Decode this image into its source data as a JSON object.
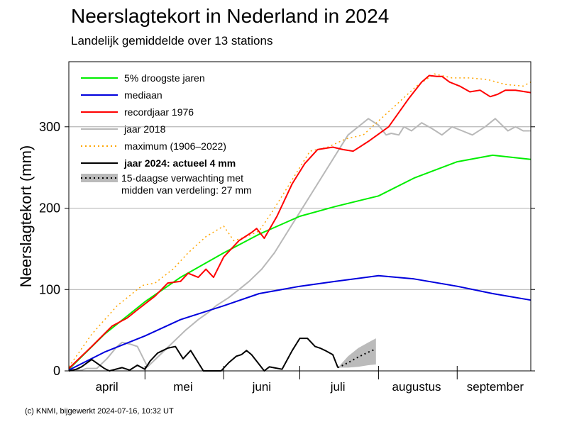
{
  "title": "Neerslagtekort in Nederland in 2024",
  "subtitle": "Landelijk gemiddelde over 13 stations",
  "footer": "(c) KNMI, bijgewerkt 2024-07-16, 10:32 UT",
  "colors": {
    "dry5": "#00ee00",
    "median": "#0000dd",
    "record1976": "#ff0000",
    "year2018": "#b8b8b8",
    "maximum": "#ffa500",
    "year2024": "#000000",
    "forecast_band": "#bbbbbb",
    "grid": "#999999"
  },
  "chart_data": {
    "type": "line",
    "title": "Neerslagtekort in Nederland in 2024",
    "subtitle": "Landelijk gemiddelde over 13 stations",
    "xlabel": "",
    "ylabel": "Neerslagtekort (mm)",
    "xlim": [
      "2024-04-01",
      "2024-09-30"
    ],
    "ylim": [
      0,
      380
    ],
    "yticks": [
      0,
      100,
      200,
      300
    ],
    "xticks": [
      {
        "label": "april",
        "date": "2024-04-16"
      },
      {
        "label": "mei",
        "date": "2024-05-16"
      },
      {
        "label": "juni",
        "date": "2024-06-16"
      },
      {
        "label": "juli",
        "date": "2024-07-16"
      },
      {
        "label": "augustus",
        "date": "2024-08-16"
      },
      {
        "label": "september",
        "date": "2024-09-16"
      }
    ],
    "month_boundaries": [
      "2024-05-01",
      "2024-06-01",
      "2024-07-01",
      "2024-08-01",
      "2024-09-01"
    ],
    "grid": true,
    "legend_position": "top-left",
    "series": [
      {
        "key": "dry5",
        "name": "5% droogste jaren",
        "style": "solid",
        "x": [
          "2024-04-01",
          "2024-04-15",
          "2024-05-01",
          "2024-05-15",
          "2024-06-01",
          "2024-06-15",
          "2024-07-01",
          "2024-07-15",
          "2024-08-01",
          "2024-08-15",
          "2024-09-01",
          "2024-09-15",
          "2024-09-30"
        ],
        "y": [
          2,
          45,
          85,
          115,
          145,
          168,
          190,
          202,
          215,
          237,
          257,
          265,
          260
        ]
      },
      {
        "key": "median",
        "name": "mediaan",
        "style": "solid",
        "x": [
          "2024-04-01",
          "2024-04-15",
          "2024-05-01",
          "2024-05-15",
          "2024-06-01",
          "2024-06-15",
          "2024-07-01",
          "2024-07-15",
          "2024-08-01",
          "2024-08-15",
          "2024-09-01",
          "2024-09-15",
          "2024-09-30"
        ],
        "y": [
          1,
          23,
          43,
          63,
          80,
          95,
          104,
          110,
          117,
          113,
          104,
          95,
          87
        ]
      },
      {
        "key": "record1976",
        "name": "recordjaar 1976",
        "style": "solid",
        "x": [
          "2024-04-01",
          "2024-04-10",
          "2024-04-18",
          "2024-04-24",
          "2024-04-28",
          "2024-05-05",
          "2024-05-10",
          "2024-05-15",
          "2024-05-18",
          "2024-05-22",
          "2024-05-25",
          "2024-05-28",
          "2024-06-01",
          "2024-06-07",
          "2024-06-12",
          "2024-06-14",
          "2024-06-17",
          "2024-06-22",
          "2024-06-28",
          "2024-07-03",
          "2024-07-08",
          "2024-07-14",
          "2024-07-18",
          "2024-07-22",
          "2024-07-28",
          "2024-08-05",
          "2024-08-13",
          "2024-08-18",
          "2024-08-21",
          "2024-08-24",
          "2024-08-26",
          "2024-08-29",
          "2024-09-02",
          "2024-09-06",
          "2024-09-10",
          "2024-09-14",
          "2024-09-17",
          "2024-09-20",
          "2024-09-24",
          "2024-09-30"
        ],
        "y": [
          3,
          30,
          55,
          65,
          75,
          92,
          108,
          110,
          120,
          115,
          125,
          115,
          140,
          160,
          170,
          175,
          163,
          190,
          230,
          255,
          272,
          275,
          272,
          270,
          282,
          300,
          335,
          355,
          363,
          362,
          362,
          355,
          350,
          343,
          345,
          337,
          340,
          345,
          345,
          342
        ]
      },
      {
        "key": "year2018",
        "name": "jaar 2018",
        "style": "solid",
        "x": [
          "2024-04-01",
          "2024-04-06",
          "2024-04-08",
          "2024-04-12",
          "2024-04-16",
          "2024-04-20",
          "2024-04-22",
          "2024-04-25",
          "2024-04-28",
          "2024-05-02",
          "2024-05-07",
          "2024-05-12",
          "2024-05-17",
          "2024-05-22",
          "2024-05-26",
          "2024-05-29",
          "2024-06-03",
          "2024-06-07",
          "2024-06-11",
          "2024-06-16",
          "2024-06-21",
          "2024-06-26",
          "2024-07-01",
          "2024-07-06",
          "2024-07-11",
          "2024-07-16",
          "2024-07-20",
          "2024-07-24",
          "2024-07-28",
          "2024-08-01",
          "2024-08-04",
          "2024-08-06",
          "2024-08-09",
          "2024-08-11",
          "2024-08-14",
          "2024-08-18",
          "2024-08-22",
          "2024-08-26",
          "2024-08-30",
          "2024-09-03",
          "2024-09-07",
          "2024-09-12",
          "2024-09-16",
          "2024-09-21",
          "2024-09-24",
          "2024-09-27",
          "2024-09-30"
        ],
        "y": [
          0,
          1,
          3,
          3,
          15,
          30,
          35,
          33,
          30,
          5,
          20,
          35,
          50,
          63,
          72,
          80,
          90,
          100,
          110,
          125,
          145,
          170,
          195,
          220,
          245,
          270,
          290,
          300,
          310,
          302,
          290,
          292,
          290,
          300,
          295,
          305,
          298,
          290,
          300,
          295,
          290,
          300,
          310,
          295,
          300,
          295,
          295
        ]
      },
      {
        "key": "maximum",
        "name": "maximum (1906–2022)",
        "style": "dotted",
        "x": [
          "2024-04-01",
          "2024-04-10",
          "2024-04-20",
          "2024-04-30",
          "2024-05-05",
          "2024-05-12",
          "2024-05-18",
          "2024-05-25",
          "2024-06-01",
          "2024-06-05",
          "2024-06-10",
          "2024-06-15",
          "2024-06-20",
          "2024-06-28",
          "2024-07-05",
          "2024-07-12",
          "2024-07-19",
          "2024-07-26",
          "2024-08-02",
          "2024-08-09",
          "2024-08-16",
          "2024-08-23",
          "2024-08-30",
          "2024-09-06",
          "2024-09-13",
          "2024-09-20",
          "2024-09-27",
          "2024-09-30"
        ],
        "y": [
          5,
          45,
          80,
          105,
          108,
          125,
          145,
          165,
          178,
          160,
          165,
          172,
          195,
          235,
          270,
          275,
          285,
          290,
          310,
          330,
          350,
          365,
          360,
          360,
          358,
          352,
          350,
          355
        ]
      },
      {
        "key": "year2024",
        "name": "jaar 2024: actueel 4 mm",
        "style": "solid",
        "bold_label": true,
        "x": [
          "2024-04-01",
          "2024-04-04",
          "2024-04-06",
          "2024-04-10",
          "2024-04-15",
          "2024-04-17",
          "2024-04-22",
          "2024-04-25",
          "2024-04-28",
          "2024-05-01",
          "2024-05-03",
          "2024-05-06",
          "2024-05-10",
          "2024-05-13",
          "2024-05-16",
          "2024-05-19",
          "2024-05-24",
          "2024-05-26",
          "2024-05-31",
          "2024-06-03",
          "2024-06-06",
          "2024-06-08",
          "2024-06-10",
          "2024-06-12",
          "2024-06-17",
          "2024-06-19",
          "2024-06-24",
          "2024-06-28",
          "2024-07-01",
          "2024-07-04",
          "2024-07-07",
          "2024-07-09",
          "2024-07-11",
          "2024-07-14",
          "2024-07-16"
        ],
        "y": [
          0,
          2,
          5,
          14,
          3,
          0,
          4,
          1,
          7,
          2,
          12,
          22,
          28,
          30,
          15,
          25,
          0,
          0,
          0,
          10,
          18,
          20,
          25,
          20,
          0,
          5,
          2,
          25,
          40,
          40,
          30,
          28,
          25,
          20,
          4
        ]
      }
    ],
    "forecast": {
      "name": "15-daagse verwachting met midden van verdeling: 27 mm",
      "x": [
        "2024-07-16",
        "2024-07-20",
        "2024-07-24",
        "2024-07-28",
        "2024-07-31"
      ],
      "mid": [
        4,
        10,
        17,
        23,
        27
      ],
      "low": [
        4,
        4,
        5,
        7,
        8
      ],
      "high": [
        4,
        18,
        28,
        35,
        40
      ]
    }
  }
}
